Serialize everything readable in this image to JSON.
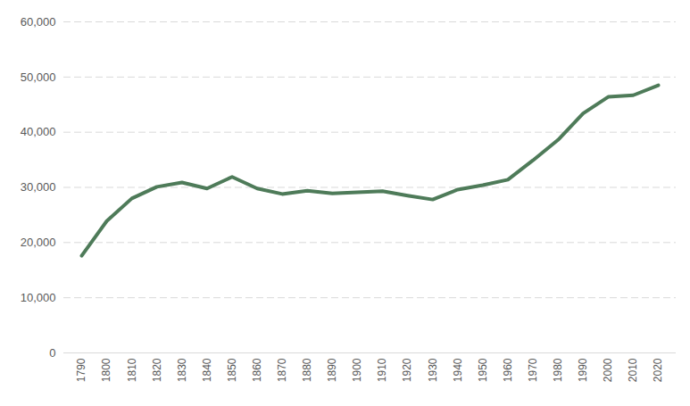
{
  "chart_data": {
    "type": "line",
    "x": [
      1790,
      1800,
      1810,
      1820,
      1830,
      1840,
      1850,
      1860,
      1870,
      1880,
      1890,
      1900,
      1910,
      1920,
      1930,
      1940,
      1950,
      1960,
      1970,
      1980,
      1990,
      2000,
      2010,
      2020
    ],
    "values": [
      17600,
      23900,
      28000,
      30100,
      30900,
      29800,
      31900,
      29800,
      28800,
      29400,
      28900,
      29100,
      29300,
      28500,
      27800,
      29600,
      30400,
      31400,
      34900,
      38600,
      43400,
      46400,
      46700,
      48500
    ],
    "color": "#4e7b59",
    "xlim": [
      1790,
      2020
    ],
    "xticks": [
      1790,
      1800,
      1810,
      1820,
      1830,
      1840,
      1850,
      1860,
      1870,
      1880,
      1890,
      1900,
      1910,
      1920,
      1930,
      1940,
      1950,
      1960,
      1970,
      1980,
      1990,
      2000,
      2010,
      2020
    ],
    "ylim": [
      0,
      60000
    ],
    "yticks": [
      0,
      {
        "value": 10000,
        "label": "10,000"
      },
      {
        "value": 20000,
        "label": "20,000"
      },
      {
        "value": 30000,
        "label": "30,000"
      },
      {
        "value": 40000,
        "label": "40,000"
      },
      {
        "value": 50000,
        "label": "50,000"
      },
      {
        "value": 60000,
        "label": "60,000"
      }
    ],
    "grid": true
  }
}
